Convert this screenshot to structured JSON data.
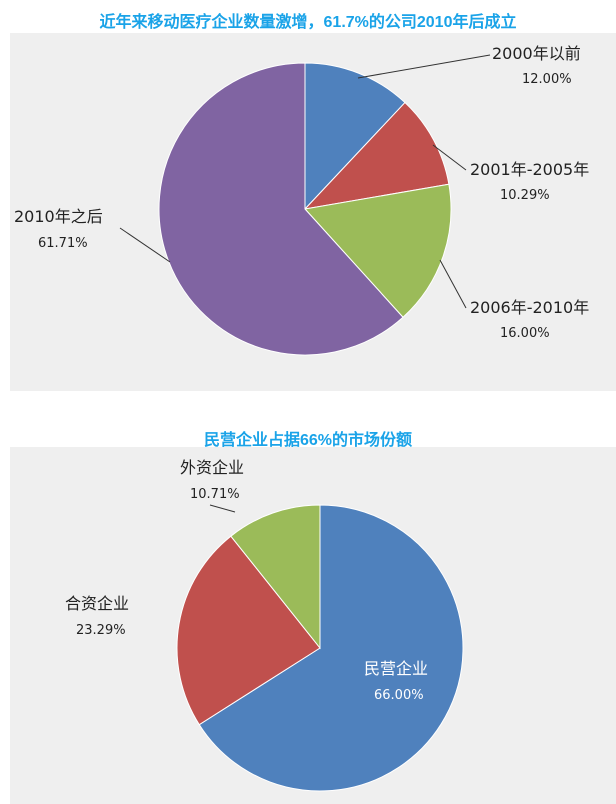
{
  "chart_data": [
    {
      "type": "pie",
      "title": "近年来移动医疗企业数量激增，61.7%的公司2010年后成立",
      "slices": [
        {
          "label": "2000年以前",
          "value": 12.0,
          "pct_label": "12.00%",
          "color": "#4f81bd"
        },
        {
          "label": "2001年-2005年",
          "value": 10.29,
          "pct_label": "10.29%",
          "color": "#c0504d"
        },
        {
          "label": "2006年-2010年",
          "value": 16.0,
          "pct_label": "16.00%",
          "color": "#9bbb59"
        },
        {
          "label": "2010年之后",
          "value": 61.71,
          "pct_label": "61.71%",
          "color": "#8064a2"
        }
      ],
      "start": "top",
      "direction": "clockwise",
      "legend": "none"
    },
    {
      "type": "pie",
      "title": "民营企业占据66%的市场份额",
      "slices": [
        {
          "label": "民营企业",
          "value": 66.0,
          "pct_label": "66.00%",
          "color": "#4f81bd"
        },
        {
          "label": "合资企业",
          "value": 23.29,
          "pct_label": "23.29%",
          "color": "#c0504d"
        },
        {
          "label": "外资企业",
          "value": 10.71,
          "pct_label": "10.71%",
          "color": "#9bbb59"
        }
      ],
      "start": "top",
      "direction": "clockwise",
      "legend": "none"
    }
  ]
}
